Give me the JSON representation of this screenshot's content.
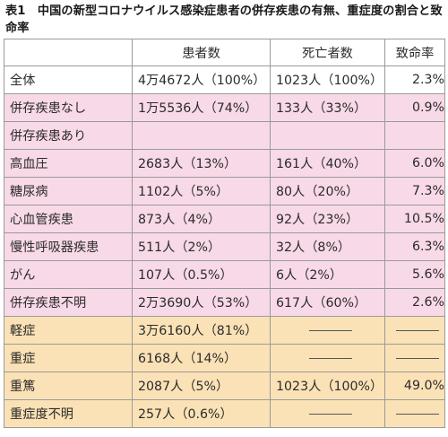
{
  "title": "表1　中国の新型コロナウイルス感染症患者の併存疾患の有無、重症度の割合と致命率",
  "headers": {
    "blank": "",
    "patients": "患者数",
    "deaths": "死亡者数",
    "fatality": "致命率"
  },
  "rows": [
    {
      "label": "全体",
      "patients": "4万4672人（100%）",
      "deaths": "1023人（100%）",
      "fatality": "2.3%"
    },
    {
      "label": "併存疾患なし",
      "patients": "1万5536人（74%）",
      "deaths": "133人（33%）",
      "fatality": "0.9%"
    },
    {
      "label": "併存疾患あり",
      "patients": "",
      "deaths": "",
      "fatality": ""
    },
    {
      "label": "高血圧",
      "patients": "2683人（13%）",
      "deaths": "161人（40%）",
      "fatality": "6.0%"
    },
    {
      "label": "糖尿病",
      "patients": "1102人（5%）",
      "deaths": "80人（20%）",
      "fatality": "7.3%"
    },
    {
      "label": "心血管疾患",
      "patients": "873人（4%）",
      "deaths": "92人（23%）",
      "fatality": "10.5%"
    },
    {
      "label": "慢性呼吸器疾患",
      "patients": "511人（2%）",
      "deaths": "32人（8%）",
      "fatality": "6.3%"
    },
    {
      "label": "がん",
      "patients": "107人（0.5%）",
      "deaths": "6人（2%）",
      "fatality": "5.6%"
    },
    {
      "label": "併存疾患不明",
      "patients": "2万3690人（53%）",
      "deaths": "617人（60%）",
      "fatality": "2.6%"
    },
    {
      "label": "軽症",
      "patients": "3万6160人（81%）",
      "deaths": "——",
      "fatality": "——"
    },
    {
      "label": "重症",
      "patients": "6168人（14%）",
      "deaths": "——",
      "fatality": "——"
    },
    {
      "label": "重篤",
      "patients": "2087人（5%）",
      "deaths": "1023人（100%）",
      "fatality": "49.0%"
    },
    {
      "label": "重症度不明",
      "patients": "257人（0.6%）",
      "deaths": "——",
      "fatality": "——"
    }
  ]
}
